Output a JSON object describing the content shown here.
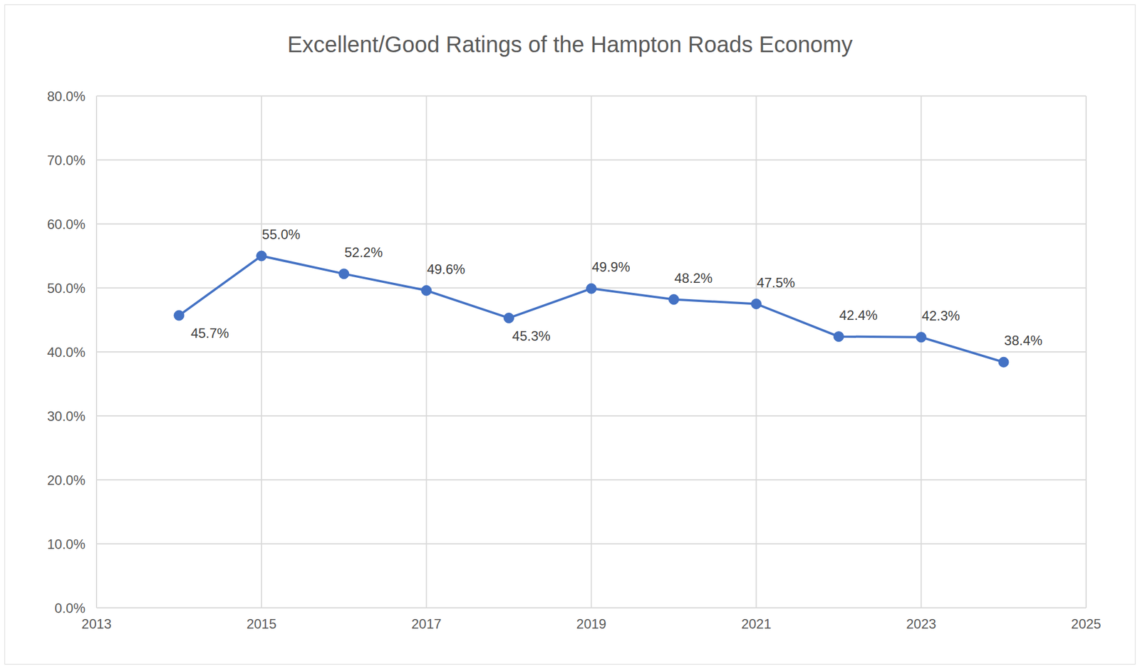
{
  "chart_data": {
    "type": "line",
    "title": "Excellent/Good Ratings of the Hampton Roads Economy",
    "x": [
      2014,
      2015,
      2016,
      2017,
      2018,
      2019,
      2020,
      2021,
      2022,
      2023,
      2024
    ],
    "values": [
      45.7,
      55.0,
      52.2,
      49.6,
      45.3,
      49.9,
      48.2,
      47.5,
      42.4,
      42.3,
      38.4
    ],
    "value_labels": [
      "45.7%",
      "55.0%",
      "52.2%",
      "49.6%",
      "45.3%",
      "49.9%",
      "48.2%",
      "47.5%",
      "42.4%",
      "42.3%",
      "38.4%"
    ],
    "color": "#4472c4",
    "xlim": [
      2013,
      2025
    ],
    "xticks": [
      2013,
      2015,
      2017,
      2019,
      2021,
      2023,
      2025
    ],
    "ylim": [
      0,
      80
    ],
    "yticks": [
      {
        "value": 0,
        "label": "0.0%"
      },
      {
        "value": 10,
        "label": "10.0%"
      },
      {
        "value": 20,
        "label": "20.0%"
      },
      {
        "value": 30,
        "label": "30.0%"
      },
      {
        "value": 40,
        "label": "40.0%"
      },
      {
        "value": 50,
        "label": "50.0%"
      },
      {
        "value": 60,
        "label": "60.0%"
      },
      {
        "value": 70,
        "label": "70.0%"
      },
      {
        "value": 80,
        "label": "80.0%"
      }
    ],
    "grid": true,
    "data_labels": true,
    "marker": "circle"
  }
}
